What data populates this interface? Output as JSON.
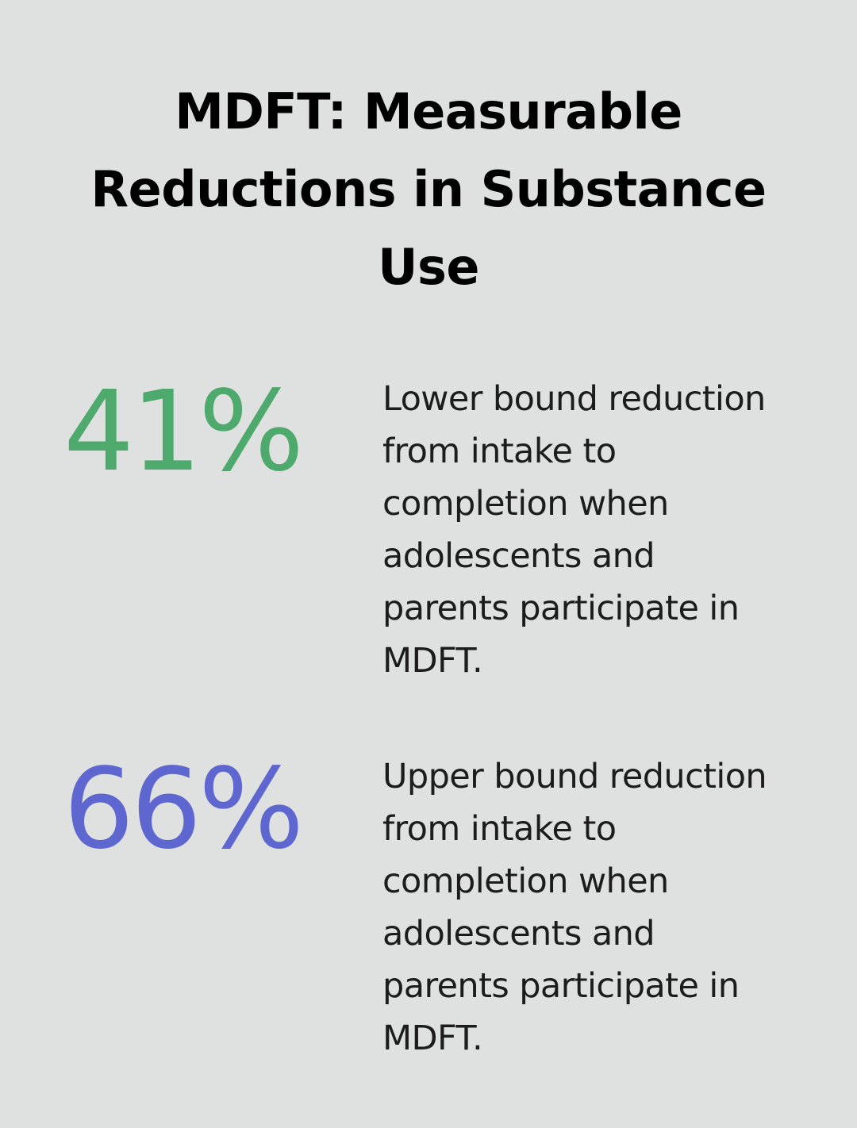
{
  "title": "MDFT: Measurable Reductions in Substance Use",
  "stats": [
    {
      "value": "41%",
      "color": "#4ea96c",
      "description": "Lower bound reduction\nfrom intake to\ncompletion when\nadolescents and\nparents participate in\nMDFT."
    },
    {
      "value": "66%",
      "color": "#5e66cf",
      "description": "Upper bound reduction\nfrom intake to\ncompletion when\nadolescents and\nparents participate in\nMDFT."
    }
  ]
}
